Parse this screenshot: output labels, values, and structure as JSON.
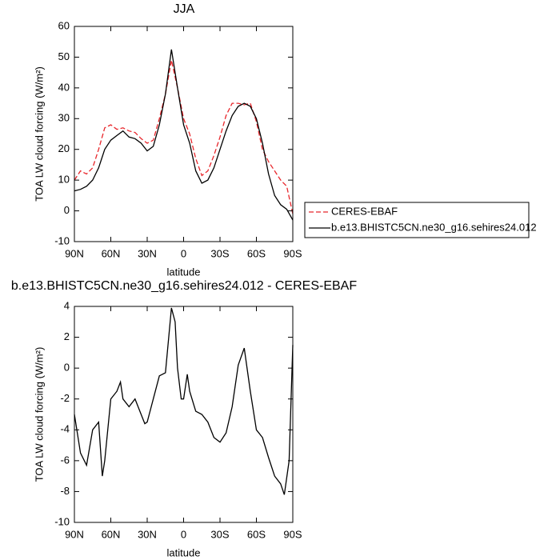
{
  "chart_data": [
    {
      "type": "line",
      "title": "JJA",
      "xlabel": "latitude",
      "ylabel": "TOA LW cloud forcing (W/m²)",
      "x": [
        90,
        85,
        80,
        75,
        70,
        65,
        60,
        55,
        50,
        45,
        40,
        35,
        30,
        25,
        20,
        15,
        10,
        5,
        0,
        -5,
        -10,
        -15,
        -20,
        -25,
        -30,
        -35,
        -40,
        -45,
        -50,
        -55,
        -60,
        -65,
        -70,
        -75,
        -80,
        -85,
        -90
      ],
      "xlim": [
        90,
        -90
      ],
      "xticks": [
        {
          "value": 90,
          "label": "90N"
        },
        {
          "value": 60,
          "label": "60N"
        },
        {
          "value": 30,
          "label": "30N"
        },
        0,
        {
          "value": -30,
          "label": "30S"
        },
        {
          "value": -60,
          "label": "60S"
        },
        {
          "value": -90,
          "label": "90S"
        }
      ],
      "ylim": [
        -10,
        60
      ],
      "yticks": [
        -10,
        0,
        10,
        20,
        30,
        40,
        50,
        60
      ],
      "legend": "right",
      "series": [
        {
          "name": "CERES-EBAF",
          "color": "#e8262b",
          "dash": true,
          "values": [
            10,
            13,
            12,
            14,
            20,
            27,
            28,
            26.5,
            27,
            26,
            25.5,
            23.5,
            22,
            23,
            30,
            38,
            49,
            40,
            30,
            25,
            17,
            11.5,
            13,
            18,
            24,
            31,
            35,
            35,
            34.5,
            35,
            29,
            20,
            16,
            13,
            10,
            8,
            -1
          ]
        },
        {
          "name": "b.e13.BHISTC5CN.ne30_g16.sehires24.012",
          "color": "#000000",
          "dash": false,
          "values": [
            6.5,
            7,
            8,
            10,
            14,
            20,
            23,
            24.5,
            26,
            24,
            23.5,
            22,
            19.5,
            21,
            28,
            38,
            52.5,
            40,
            28,
            22,
            13,
            9,
            10,
            14,
            20,
            26,
            31,
            34,
            35,
            34,
            30,
            22,
            12,
            5,
            2,
            0.5,
            -3
          ]
        }
      ]
    },
    {
      "type": "line",
      "title": "b.e13.BHISTC5CN.ne30_g16.sehires24.012 - CERES-EBAF",
      "xlabel": "latitude",
      "ylabel": "TOA LW cloud forcing (W/m²)",
      "x": [
        90,
        85,
        80,
        75,
        70,
        67,
        65,
        60,
        55,
        52,
        50,
        45,
        40,
        35,
        32,
        30,
        25,
        20,
        15,
        10,
        7,
        5,
        2,
        0,
        -3,
        -5,
        -10,
        -15,
        -20,
        -25,
        -30,
        -35,
        -40,
        -45,
        -50,
        -55,
        -60,
        -65,
        -70,
        -75,
        -80,
        -83,
        -87,
        -90
      ],
      "xlim": [
        90,
        -90
      ],
      "xticks": [
        {
          "value": 90,
          "label": "90N"
        },
        {
          "value": 60,
          "label": "60N"
        },
        {
          "value": 30,
          "label": "30N"
        },
        0,
        {
          "value": -30,
          "label": "30S"
        },
        {
          "value": -60,
          "label": "60S"
        },
        {
          "value": -90,
          "label": "90S"
        }
      ],
      "ylim": [
        -10,
        4
      ],
      "yticks": [
        -10,
        -8,
        -6,
        -4,
        -2,
        0,
        2,
        4
      ],
      "series": [
        {
          "color": "#000000",
          "dash": false,
          "values": [
            -3,
            -5.5,
            -6.3,
            -4,
            -3.5,
            -7,
            -6,
            -2,
            -1.5,
            -0.9,
            -2,
            -2.5,
            -2,
            -3,
            -3.6,
            -3.5,
            -2,
            -0.5,
            -0.3,
            3.9,
            3,
            0,
            -2,
            -2,
            -0.4,
            -1.5,
            -2.8,
            -3,
            -3.5,
            -4.5,
            -4.8,
            -4.2,
            -2.5,
            0.2,
            1.3,
            -1.5,
            -4,
            -4.5,
            -5.8,
            -7,
            -7.5,
            -8.2,
            -6,
            1.5
          ]
        }
      ]
    }
  ]
}
